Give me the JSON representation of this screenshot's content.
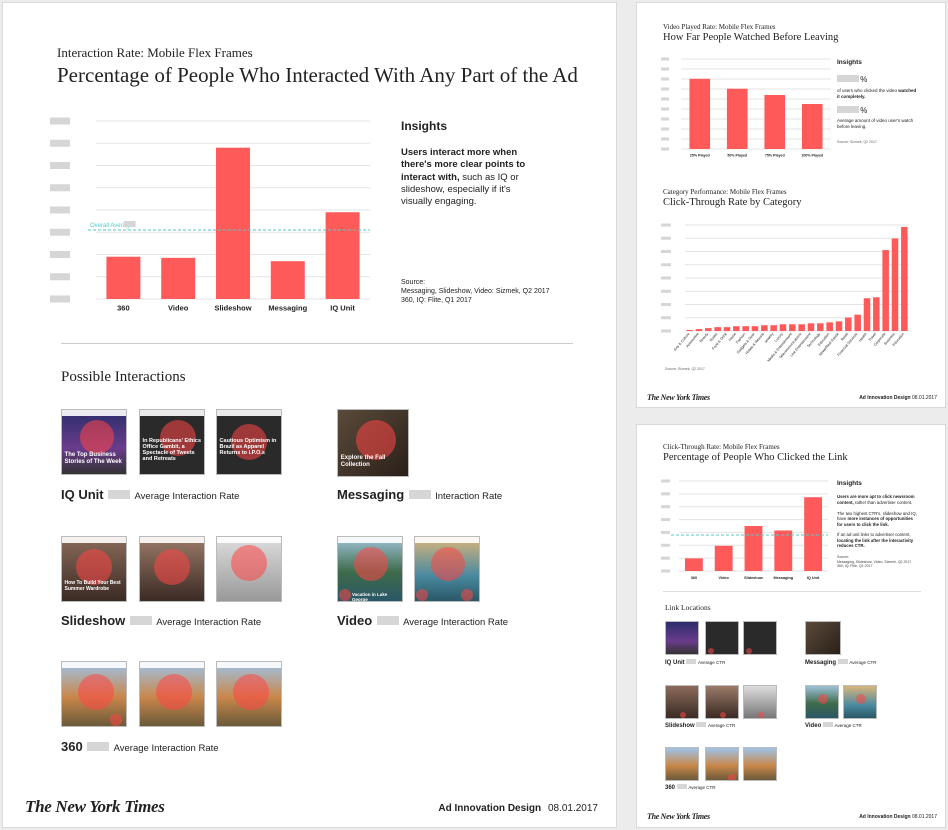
{
  "colors": {
    "bar": "#ff5a5a",
    "average_line": "#52c9c9",
    "placeholder": "#d6d6d6"
  },
  "main": {
    "eyebrow": "Interaction Rate: Mobile Flex Frames",
    "title": "Percentage of People Who Interacted With Any Part of the Ad",
    "overall_average_label": "Overall Average",
    "insights": {
      "heading": "Insights",
      "text_bold": "Users interact more when there's more clear points to interact with,",
      "text_regular": " such as IQ or slideshow, especially if it's visually engaging."
    },
    "source": [
      "Source:",
      "Messaging, Slideshow, Video: Sizmek, Q2 2017",
      "360, IQ: Flite, Q1 2017"
    ],
    "possible_title": "Possible Interactions",
    "formats": [
      {
        "name": "IQ Unit",
        "label": "Average Interaction Rate"
      },
      {
        "name": "Messaging",
        "label": "Interaction Rate"
      },
      {
        "name": "Slideshow",
        "label": "Average Interaction Rate"
      },
      {
        "name": "Video",
        "label": "Average Interaction Rate"
      },
      {
        "name": "360",
        "label": "Average Interaction Rate"
      }
    ],
    "thumb_captions": {
      "iq1": "The Top Business Stories of The Week",
      "iq2": "In Republicans' Ethics Office Gambit, a Spectacle of Tweets and Retreats",
      "iq3": "Cautious Optimism in Brazil as Apparel Returns to I.P.O.s",
      "msg": "Explore the Fall Collection",
      "ss1": "How To Build Your Best Summer Wardrobe",
      "vid1": "Vacation in Lake George"
    },
    "footer_brand": "The New York Times",
    "footer_right_bold": "Ad Innovation Design",
    "footer_date": "08.01.2017"
  },
  "chart_data": [
    {
      "type": "bar",
      "title": "Percentage of People Who Interacted With Any Part of the Ad",
      "categories": [
        "360",
        "Video",
        "Slideshow",
        "Messaging",
        "IQ Unit"
      ],
      "values": [
        19,
        18.5,
        68,
        17,
        39
      ],
      "average": 31,
      "ylim": [
        0,
        80
      ],
      "grid": true
    },
    {
      "type": "bar",
      "title": "How Far People Watched Before Leaving",
      "categories": [
        "25% Played",
        "50% Played",
        "75% Played",
        "100% Played"
      ],
      "values": [
        78,
        67,
        60,
        50
      ],
      "ylim": [
        0,
        100
      ],
      "grid": true
    },
    {
      "type": "bar",
      "title": "Click-Through Rate by Category",
      "categories": [
        "Arts & Culture",
        "Automotive",
        "Beauty",
        "Books",
        "Food & Drink",
        "Home",
        "Fashion",
        "Gadgets & Gear",
        "Hotels & Resorts",
        "Jewelry",
        "Luxury",
        "Media & Entertainment",
        "Telecommunications",
        "Live Entertainment",
        "Technology",
        "Education",
        "News/Real Estate",
        "Retail",
        "Financial Services",
        "Health",
        "Travel",
        "Corporate",
        "Business",
        "Education"
      ],
      "values": [
        1,
        2,
        3,
        4,
        4,
        5,
        5,
        5,
        6,
        6,
        7,
        7,
        7,
        8,
        8,
        9,
        10,
        14,
        17,
        34,
        35,
        84,
        96,
        108
      ],
      "ylim": [
        0,
        110
      ]
    },
    {
      "type": "bar",
      "title": "Percentage of People Who Clicked the Link",
      "categories": [
        "360",
        "Video",
        "Slideshow",
        "Messaging",
        "IQ Unit"
      ],
      "values": [
        14,
        28,
        50,
        45,
        82
      ],
      "average": 40,
      "ylim": [
        0,
        100
      ],
      "grid": true
    }
  ],
  "video_panel": {
    "eyebrow": "Video Played Rate: Mobile Flex Frames",
    "title": "How Far People Watched Before Leaving",
    "insights_heading": "Insights",
    "pct": "%",
    "stat1_pre": "of users who clicked the video ",
    "stat1_bold": "watched it completely.",
    "stat2": "Average amount of video user's watch before leaving.",
    "source": "Source: Sizmek, Q2 2017"
  },
  "category_panel": {
    "eyebrow": "Category Performance: Mobile Flex Frames",
    "title": "Click-Through Rate by Category",
    "source": "Source: Sizmek, Q2 2017",
    "footer_brand": "The New York Times",
    "footer_right": "Ad Innovation Design",
    "footer_date": "08.01.2017"
  },
  "ctr_panel": {
    "eyebrow": "Click-Through Rate: Mobile Flex Frames",
    "title": "Percentage of People Who Clicked the Link",
    "insights_heading": "Insights",
    "p1_bold": "Users are more apt to click newsroom content,",
    "p1_reg": " rather than advertiser content.",
    "p2_reg": "The two highest CTR's, slideshow and IQ, have ",
    "p2_bold": "more instances of opportunities for users to click the link.",
    "p3_reg": "If an ad unit links to advertiser content, ",
    "p3_bold": "locating the link after the interactivity reduces CTR.",
    "source": [
      "Source:",
      "Messaging, Slideshow, Video: Sizmek, Q2 2017",
      "360, IQ: Flite, Q1 2017"
    ],
    "link_title": "Link Locations",
    "formats": [
      {
        "name": "IQ Unit",
        "label": "Average CTR"
      },
      {
        "name": "Messaging",
        "label": "Average CTR"
      },
      {
        "name": "Slideshow",
        "label": "Average CTR"
      },
      {
        "name": "Video",
        "label": "Average CTR"
      },
      {
        "name": "360",
        "label": "Average CTR"
      }
    ],
    "footer_brand": "The New York Times",
    "footer_right": "Ad Innovation Design",
    "footer_date": "08.01.2017"
  }
}
